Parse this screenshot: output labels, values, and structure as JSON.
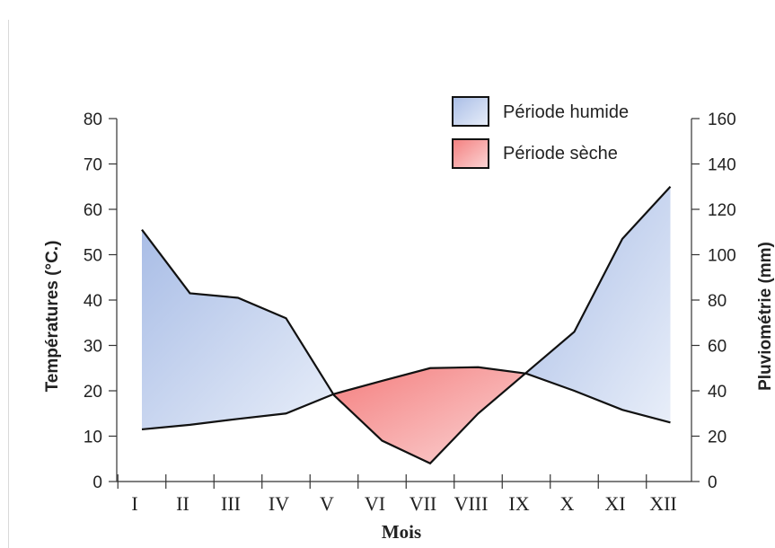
{
  "chart_data": {
    "type": "area",
    "x": [
      "I",
      "II",
      "III",
      "IV",
      "V",
      "VI",
      "VII",
      "VIII",
      "IX",
      "X",
      "XI",
      "XII"
    ],
    "xlabel": "Mois",
    "ylabel_left": "Températures (°C.)",
    "ylabel_right": "Pluviométrie (mm)",
    "ylim_left": [
      0,
      80
    ],
    "ylim_right": [
      0,
      160
    ],
    "yticks_left": [
      "0",
      "10",
      "20",
      "30",
      "40",
      "50",
      "60",
      "70",
      "80"
    ],
    "yticks_right": [
      "0",
      "20",
      "40",
      "60",
      "80",
      "100",
      "120",
      "140",
      "160"
    ],
    "series": [
      {
        "axis": "left",
        "values": [
          11.5,
          12.5,
          13.8,
          15,
          19.3,
          22.2,
          25,
          25.2,
          23.8,
          20,
          15.8,
          13
        ]
      },
      {
        "axis": "right",
        "values": [
          111,
          83,
          81,
          72,
          38,
          18,
          8,
          30,
          48,
          66,
          107,
          130
        ]
      }
    ],
    "fill_regions": [
      {
        "label": "Période humide",
        "color": "#a9bde6",
        "color_light": "#e8eef9"
      },
      {
        "label": "Période sèche",
        "color": "#f47f7f",
        "color_light": "#fbd5d5"
      }
    ],
    "legend_position": "top-center-right",
    "grid": false
  }
}
